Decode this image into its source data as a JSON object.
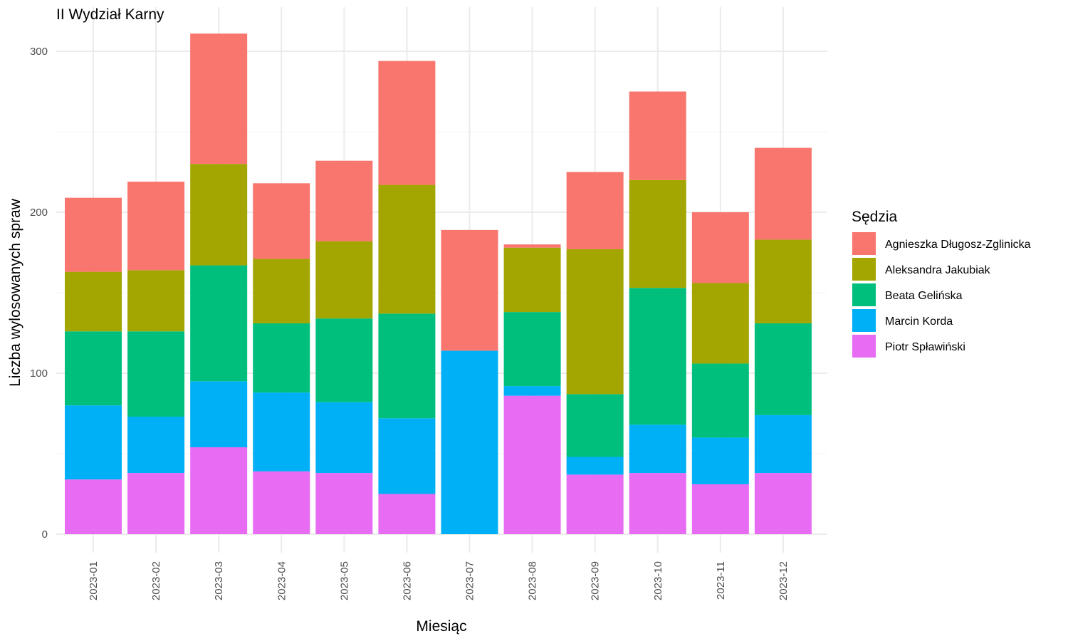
{
  "chart_data": {
    "type": "bar",
    "stacked": true,
    "title": "II Wydział Karny",
    "xlabel": "Miesiąc",
    "ylabel": "Liczba wylosowanych spraw",
    "legend_title": "Sędzia",
    "legend_position": "right",
    "grid": true,
    "ylim": [
      0,
      320
    ],
    "yticks": [
      0,
      100,
      200,
      300
    ],
    "categories": [
      "2023-01",
      "2023-02",
      "2023-03",
      "2023-04",
      "2023-05",
      "2023-06",
      "2023-07",
      "2023-08",
      "2023-09",
      "2023-10",
      "2023-11",
      "2023-12"
    ],
    "series": [
      {
        "name": "Agnieszka Długosz-Zglinicka",
        "color": "#F8766D",
        "values": [
          46,
          55,
          81,
          47,
          50,
          77,
          75,
          2,
          48,
          55,
          44,
          57
        ]
      },
      {
        "name": "Aleksandra Jakubiak",
        "color": "#A3A500",
        "values": [
          37,
          38,
          63,
          40,
          48,
          80,
          0,
          40,
          90,
          67,
          50,
          52
        ]
      },
      {
        "name": "Beata Gelińska",
        "color": "#00BF7D",
        "values": [
          46,
          53,
          72,
          43,
          52,
          65,
          0,
          46,
          39,
          85,
          46,
          57
        ]
      },
      {
        "name": "Marcin Korda",
        "color": "#00B0F6",
        "values": [
          46,
          35,
          41,
          49,
          44,
          47,
          114,
          6,
          11,
          30,
          29,
          36
        ]
      },
      {
        "name": "Piotr Spławiński",
        "color": "#E76BF3",
        "values": [
          34,
          38,
          54,
          39,
          38,
          25,
          0,
          86,
          37,
          38,
          31,
          38
        ]
      }
    ]
  }
}
